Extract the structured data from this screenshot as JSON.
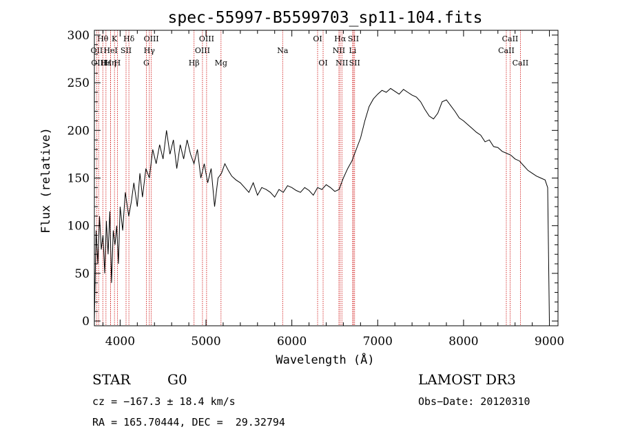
{
  "chart_data": {
    "type": "line",
    "title": "spec-55997-B5599703_sp11-104.fits",
    "xlabel": "Wavelength (Å)",
    "ylabel": "Flux (relative)",
    "xlim": [
      3700,
      9100
    ],
    "ylim": [
      -5,
      305
    ],
    "x_ticks": [
      4000,
      5000,
      6000,
      7000,
      8000,
      9000
    ],
    "y_ticks": [
      0,
      50,
      100,
      150,
      200,
      250,
      300
    ],
    "series": [
      {
        "name": "flux",
        "x": [
          3700,
          3720,
          3740,
          3760,
          3780,
          3800,
          3820,
          3840,
          3860,
          3880,
          3900,
          3920,
          3940,
          3960,
          3980,
          4000,
          4030,
          4060,
          4100,
          4130,
          4160,
          4200,
          4230,
          4260,
          4300,
          4340,
          4380,
          4420,
          4460,
          4500,
          4540,
          4580,
          4620,
          4660,
          4700,
          4740,
          4780,
          4820,
          4860,
          4900,
          4940,
          4980,
          5020,
          5060,
          5100,
          5140,
          5180,
          5220,
          5260,
          5300,
          5350,
          5400,
          5450,
          5500,
          5550,
          5600,
          5650,
          5700,
          5750,
          5800,
          5850,
          5900,
          5950,
          6000,
          6050,
          6100,
          6150,
          6200,
          6250,
          6300,
          6350,
          6400,
          6450,
          6500,
          6550,
          6600,
          6650,
          6700,
          6750,
          6800,
          6850,
          6900,
          6950,
          7000,
          7050,
          7100,
          7150,
          7200,
          7250,
          7300,
          7350,
          7400,
          7450,
          7500,
          7550,
          7600,
          7650,
          7700,
          7750,
          7800,
          7850,
          7900,
          7950,
          8000,
          8050,
          8100,
          8150,
          8200,
          8250,
          8300,
          8350,
          8400,
          8450,
          8500,
          8550,
          8600,
          8650,
          8700,
          8750,
          8800,
          8850,
          8900,
          8950,
          8980,
          9000
        ],
        "y": [
          0,
          95,
          60,
          110,
          75,
          90,
          50,
          105,
          70,
          115,
          40,
          95,
          80,
          100,
          60,
          120,
          95,
          135,
          110,
          125,
          145,
          120,
          155,
          130,
          160,
          150,
          180,
          165,
          185,
          170,
          200,
          175,
          190,
          160,
          185,
          170,
          190,
          175,
          165,
          180,
          150,
          165,
          145,
          160,
          120,
          150,
          155,
          165,
          158,
          152,
          148,
          145,
          140,
          135,
          145,
          132,
          140,
          138,
          135,
          130,
          138,
          135,
          142,
          140,
          137,
          135,
          140,
          137,
          132,
          140,
          138,
          143,
          140,
          136,
          138,
          150,
          160,
          168,
          180,
          192,
          210,
          225,
          233,
          238,
          242,
          240,
          244,
          241,
          238,
          243,
          240,
          237,
          235,
          230,
          222,
          215,
          212,
          218,
          230,
          232,
          226,
          220,
          213,
          210,
          206,
          202,
          198,
          195,
          188,
          190,
          183,
          182,
          178,
          176,
          174,
          170,
          168,
          163,
          158,
          155,
          152,
          150,
          148,
          140,
          0
        ]
      }
    ],
    "line_markers": [
      {
        "label": "Hθ",
        "wavelength": 3798,
        "row": 1
      },
      {
        "label": "OII",
        "wavelength": 3727,
        "row": 2
      },
      {
        "label": "OIII",
        "wavelength": 3750,
        "row": 3
      },
      {
        "label": "Hε",
        "wavelength": 3835,
        "row": 3
      },
      {
        "label": "HeI",
        "wavelength": 3889,
        "row": 2
      },
      {
        "label": "K",
        "wavelength": 3934,
        "row": 1
      },
      {
        "label": "Hη",
        "wavelength": 3889,
        "row": 3
      },
      {
        "label": "H",
        "wavelength": 3968,
        "row": 3
      },
      {
        "label": "SII",
        "wavelength": 4069,
        "row": 2
      },
      {
        "label": "Hδ",
        "wavelength": 4102,
        "row": 1
      },
      {
        "label": "OIII",
        "wavelength": 4363,
        "row": 1
      },
      {
        "label": "Hγ",
        "wavelength": 4340,
        "row": 2
      },
      {
        "label": "G",
        "wavelength": 4305,
        "row": 3
      },
      {
        "label": "Hβ",
        "wavelength": 4861,
        "row": 3
      },
      {
        "label": "OIII",
        "wavelength": 4959,
        "row": 2
      },
      {
        "label": "OIII",
        "wavelength": 5007,
        "row": 1
      },
      {
        "label": "Mg",
        "wavelength": 5175,
        "row": 3
      },
      {
        "label": "Na",
        "wavelength": 5893,
        "row": 2
      },
      {
        "label": "OI",
        "wavelength": 6300,
        "row": 1
      },
      {
        "label": "OI",
        "wavelength": 6364,
        "row": 3
      },
      {
        "label": "Hα",
        "wavelength": 6563,
        "row": 1
      },
      {
        "label": "NII",
        "wavelength": 6548,
        "row": 2
      },
      {
        "label": "NII",
        "wavelength": 6583,
        "row": 3
      },
      {
        "label": "SII",
        "wavelength": 6717,
        "row": 1
      },
      {
        "label": "Li",
        "wavelength": 6708,
        "row": 2
      },
      {
        "label": "SII",
        "wavelength": 6731,
        "row": 3
      },
      {
        "label": "CaII",
        "wavelength": 8542,
        "row": 1
      },
      {
        "label": "CaII",
        "wavelength": 8498,
        "row": 2
      },
      {
        "label": "CaII",
        "wavelength": 8662,
        "row": 3
      }
    ],
    "marker_color": "#cc0000"
  },
  "info": {
    "object_type": "STAR",
    "subclass": "G0",
    "survey": "LAMOST DR3",
    "velocity": "cz = −167.3 ± 18.4 km/s",
    "obs_date": "Obs−Date: 20120310",
    "coords": "RA = 165.70444, DEC =  29.32794"
  }
}
